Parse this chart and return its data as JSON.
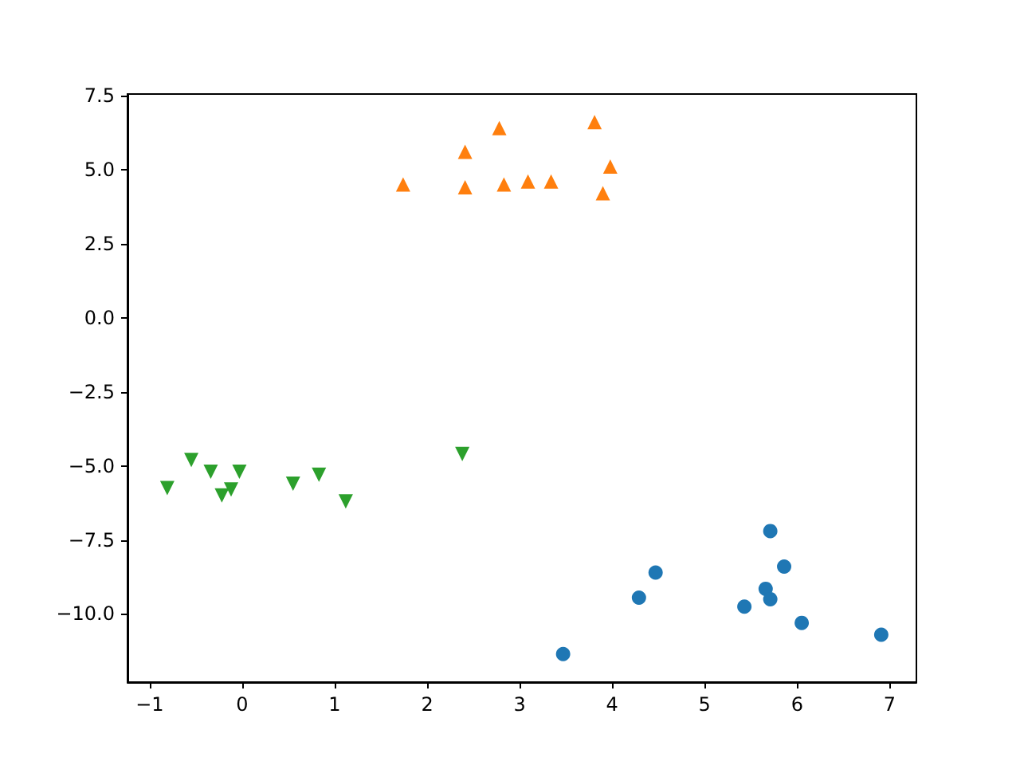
{
  "chart_data": {
    "type": "scatter",
    "xlim": [
      -1.24,
      7.29
    ],
    "ylim": [
      -12.3,
      7.55
    ],
    "xticks": [
      {
        "value": -1,
        "label": "−1"
      },
      0,
      1,
      2,
      3,
      4,
      5,
      6,
      7
    ],
    "yticks": [
      {
        "value": -10,
        "label": "−10.0"
      },
      {
        "value": -7.5,
        "label": "−7.5"
      },
      {
        "value": -5,
        "label": "−5.0"
      },
      {
        "value": -2.5,
        "label": "−2.5"
      },
      {
        "value": 0,
        "label": "0.0"
      },
      {
        "value": 2.5,
        "label": "2.5"
      },
      {
        "value": 5,
        "label": "5.0"
      },
      {
        "value": 7.5,
        "label": "7.5"
      }
    ],
    "grid": false,
    "series": [
      {
        "color": "#1f77b4",
        "marker": "circle",
        "x": [
          3.47,
          4.29,
          4.47,
          5.43,
          5.66,
          5.71,
          5.71,
          5.86,
          6.05,
          6.91
        ],
        "values": [
          -11.35,
          -9.45,
          -8.6,
          -9.75,
          -9.15,
          -7.2,
          -9.5,
          -8.4,
          -10.3,
          -10.7
        ]
      },
      {
        "color": "#ff7f0e",
        "marker": "triangle",
        "x": [
          1.74,
          2.41,
          2.41,
          2.78,
          2.83,
          3.09,
          3.34,
          3.81,
          3.98,
          3.9
        ],
        "values": [
          4.5,
          5.6,
          4.4,
          6.4,
          4.5,
          4.6,
          4.6,
          6.6,
          5.1,
          4.2
        ]
      },
      {
        "color": "#2ca02c",
        "marker": "triangle_down",
        "x": [
          -0.81,
          -0.55,
          -0.34,
          -0.22,
          -0.12,
          -0.03,
          0.55,
          0.83,
          1.12,
          2.38
        ],
        "values": [
          -5.75,
          -4.8,
          -5.2,
          -6.0,
          -5.8,
          -5.2,
          -5.6,
          -5.3,
          -6.2,
          -4.6
        ]
      }
    ]
  }
}
